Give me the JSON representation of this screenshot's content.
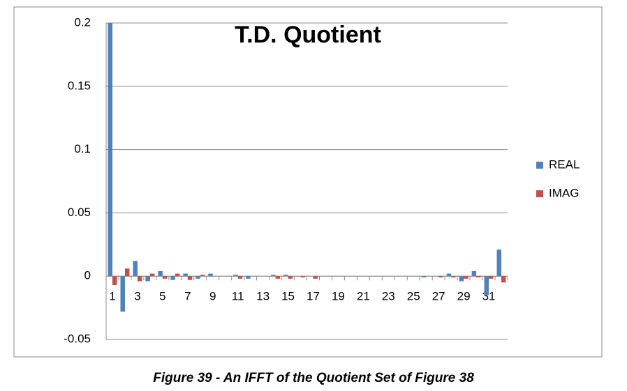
{
  "chart_data": {
    "type": "bar",
    "title": "T.D. Quotient",
    "categories": [
      "1",
      null,
      "3",
      null,
      "5",
      null,
      "7",
      null,
      "9",
      null,
      "11",
      null,
      "13",
      null,
      "15",
      null,
      "17",
      null,
      "19",
      null,
      "21",
      null,
      "23",
      null,
      "25",
      null,
      "27",
      null,
      "29",
      null,
      "31",
      null
    ],
    "series": [
      {
        "name": "REAL",
        "color": "#4f81bd",
        "values": [
          0.2,
          -0.028,
          0.012,
          -0.004,
          0.004,
          -0.003,
          0.002,
          -0.002,
          0.002,
          0,
          0.001,
          -0.002,
          0,
          0.001,
          0.001,
          0,
          0,
          0,
          0,
          0,
          0,
          0,
          0,
          0,
          0,
          -0.001,
          0,
          0.002,
          -0.004,
          0.004,
          -0.015,
          0.021
        ]
      },
      {
        "name": "IMAG",
        "color": "#c0504d",
        "values": [
          -0.007,
          0.006,
          -0.004,
          0.002,
          -0.002,
          0.002,
          -0.003,
          0.001,
          0,
          0,
          -0.002,
          0,
          0,
          -0.002,
          -0.002,
          -0.001,
          -0.002,
          0,
          0,
          0,
          0,
          0,
          0,
          0,
          0,
          0,
          -0.001,
          -0.001,
          -0.002,
          -0.001,
          -0.002,
          -0.005
        ]
      }
    ],
    "ylim": [
      -0.05,
      0.2
    ],
    "yticks": [
      -0.05,
      0,
      0.05,
      0.1,
      0.15,
      0.2
    ],
    "grid": true,
    "legend": "right"
  },
  "caption": "Figure 39 - An IFFT of the Quotient Set of Figure 38"
}
